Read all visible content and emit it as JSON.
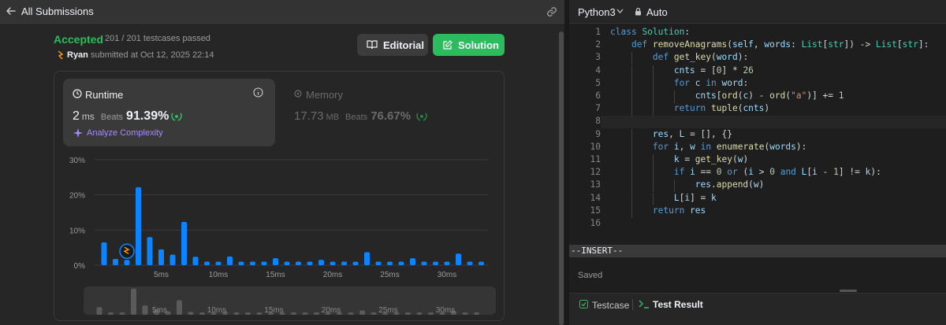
{
  "header": {
    "title": "All Submissions"
  },
  "submission": {
    "status": "Accepted",
    "testcases": "201 / 201 testcases passed",
    "user": "Ryan",
    "submitted_text": "submitted at Oct 12, 2025 22:14"
  },
  "buttons": {
    "editorial": "Editorial",
    "solution": "Solution"
  },
  "runtime": {
    "title": "Runtime",
    "value": "2",
    "unit": "ms",
    "beats_label": "Beats",
    "beats_pct": "91.39%",
    "analyze": "Analyze Complexity"
  },
  "memory": {
    "title": "Memory",
    "value": "17.73",
    "unit": "MB",
    "beats_label": "Beats",
    "beats_pct": "76.67%"
  },
  "chart_data": {
    "type": "bar",
    "title": "",
    "xlabel": "",
    "ylabel": "",
    "yticks": [
      "30%",
      "20%",
      "10%",
      "0%"
    ],
    "xticks": [
      "5ms",
      "10ms",
      "15ms",
      "20ms",
      "25ms",
      "30ms"
    ],
    "ylim": [
      0,
      30
    ],
    "x_ms": [
      0,
      1,
      2,
      3,
      4,
      5,
      6,
      7,
      8,
      9,
      10,
      11,
      12,
      13,
      14,
      15,
      16,
      17,
      18,
      19,
      20,
      21,
      22,
      23,
      24,
      25,
      26,
      27,
      28,
      29,
      30,
      31,
      32,
      33
    ],
    "values": [
      6.5,
      1.8,
      1.5,
      22.2,
      8.0,
      4.5,
      3.0,
      12.3,
      2.4,
      1.0,
      1.0,
      2.5,
      1.0,
      1.0,
      1.0,
      2.0,
      1.0,
      1.0,
      1.0,
      1.5,
      1.0,
      1.0,
      1.0,
      3.7,
      1.0,
      1.0,
      1.0,
      2.0,
      1.0,
      1.0,
      1.0,
      3.3,
      1.0,
      1.0
    ],
    "highlight_x_ms": 2,
    "grid": true
  },
  "mini_chart": {
    "xticks": [
      "5ms",
      "10ms",
      "15ms",
      "20ms",
      "25ms",
      "30ms"
    ]
  },
  "editor": {
    "language": "Python3",
    "mode": "Auto",
    "insert": "--INSERT--",
    "saved": "Saved",
    "lines": [
      "class Solution:",
      "    def removeAnagrams(self, words: List[str]) -> List[str]:",
      "        def get_key(word):",
      "            cnts = [0] * 26",
      "            for c in word:",
      "                cnts[ord(c) - ord(\"a\")] += 1",
      "            return tuple(cnts)",
      "",
      "        res, L = [], {}",
      "        for i, w in enumerate(words):",
      "            k = get_key(w)",
      "            if i == 0 or (i > 0 and L[i - 1] != k):",
      "                res.append(w)",
      "            L[i] = k",
      "        return res",
      ""
    ]
  },
  "bottom": {
    "testcase": "Testcase",
    "test_result": "Test Result"
  },
  "colors": {
    "accent": "#2cbb5d",
    "bar": "#0a84ff",
    "purple": "#a78bfa"
  }
}
